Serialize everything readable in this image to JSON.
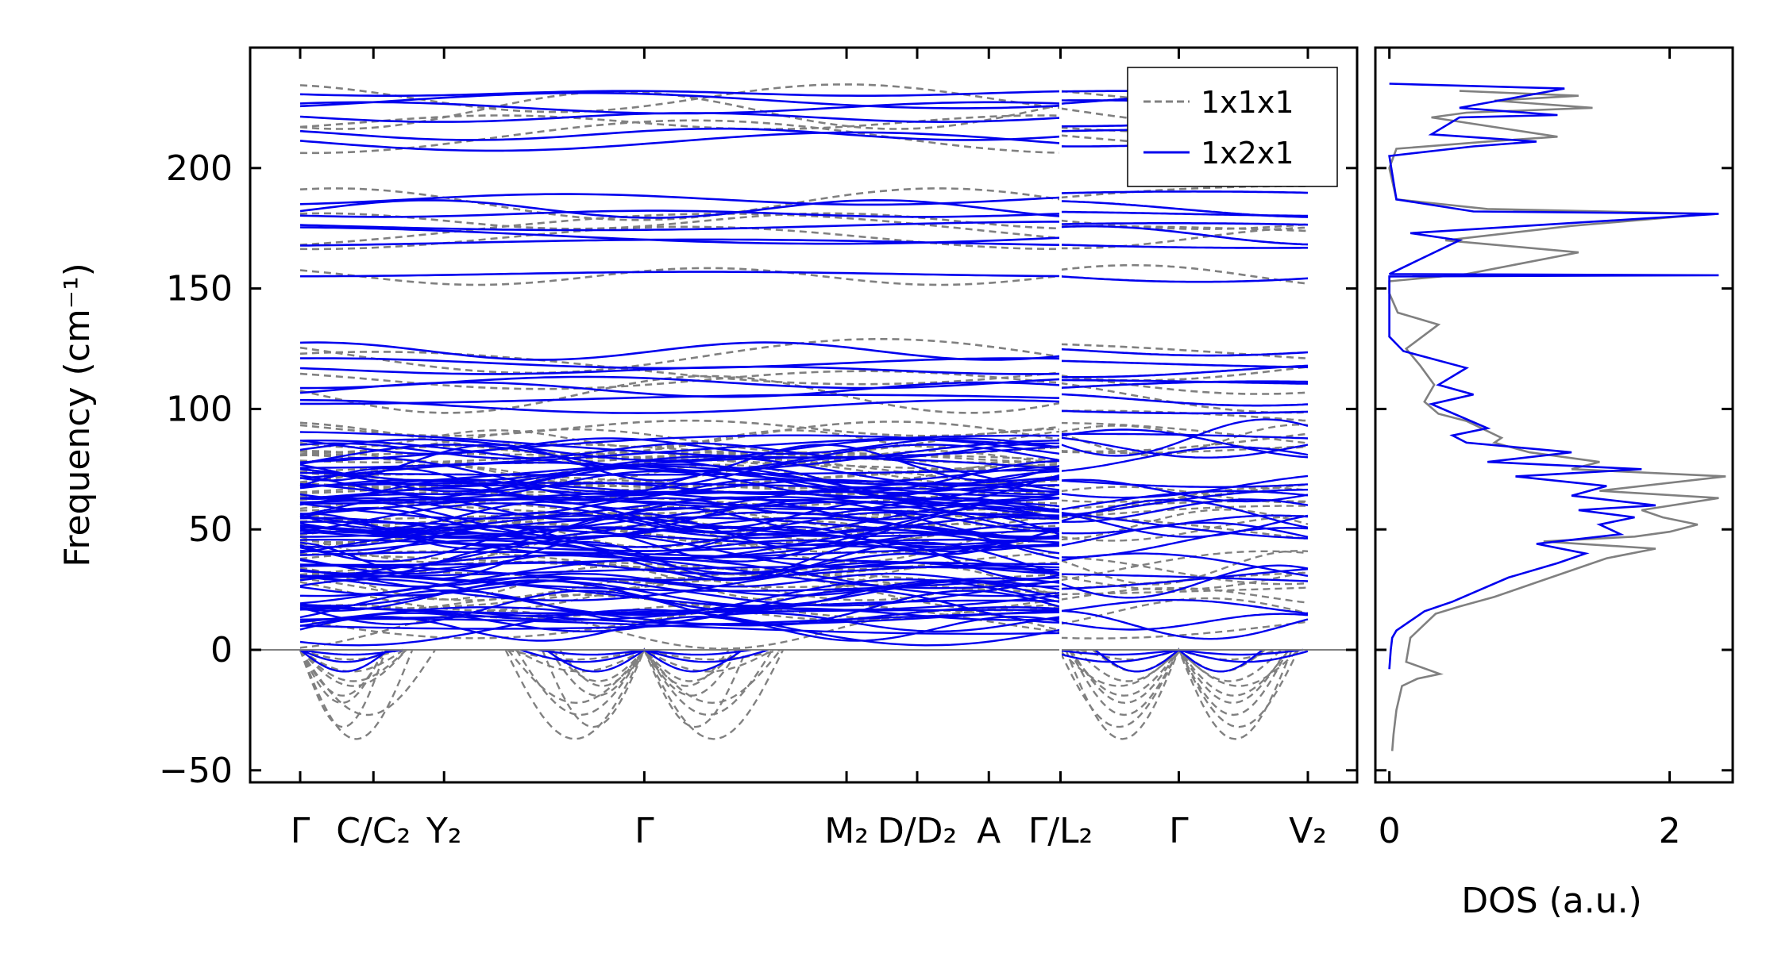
{
  "chart_data": [
    {
      "type": "line",
      "name": "band-structure",
      "ylabel": "Frequency (cm⁻¹)",
      "ylim": [
        -55,
        250
      ],
      "yticks": [
        -50,
        0,
        50,
        100,
        150,
        200
      ],
      "kpath_labels": [
        {
          "label": "Γ",
          "k": 0
        },
        {
          "label": "C/C₂",
          "k": 0.0727
        },
        {
          "label": "Y₂",
          "k": 0.1428
        },
        {
          "label": "Γ",
          "k": 0.3415
        },
        {
          "label": "M₂",
          "k": 0.5422
        },
        {
          "label": "D/D₂",
          "k": 0.6123
        },
        {
          "label": "A",
          "k": 0.6834
        },
        {
          "label": "Γ/L₂",
          "k": 0.7545
        },
        {
          "label": "Γ",
          "k": 0.8719
        },
        {
          "label": "V₂",
          "k": 1.0
        }
      ],
      "path_break_k": 0.7545,
      "zero_line": 0,
      "legend": {
        "position": "top-right",
        "entries": [
          {
            "name": "1x1x1",
            "color": "#808080",
            "style": "dashed"
          },
          {
            "name": "1x2x1",
            "color": "#0000ee",
            "style": "solid"
          }
        ]
      },
      "flat_bands_1x2x1": [
        231,
        228,
        225,
        221,
        214,
        211,
        187,
        183,
        181,
        176,
        172,
        169,
        156,
        124,
        119,
        116,
        111,
        108,
        104,
        101
      ],
      "flat_bands_1x1x1": [
        229,
        224,
        219,
        213,
        185,
        178,
        174,
        171,
        155,
        122,
        117,
        112,
        106,
        92,
        88
      ],
      "acoustic_dips_1x1x1": [
        -4,
        -9,
        -13,
        -15,
        -19,
        -22,
        -27,
        -32,
        -37
      ],
      "acoustic_dips_1x2x1": [
        -2,
        -5,
        -9
      ],
      "dense_region_ylim": [
        8,
        89
      ]
    },
    {
      "type": "line",
      "name": "density-of-states",
      "xlabel": "DOS (a.u.)",
      "xlim": [
        -0.1,
        2.45
      ],
      "xticks": [
        0,
        2
      ],
      "ylim": [
        -55,
        250
      ],
      "series": [
        {
          "name": "1x1x1",
          "color": "#808080",
          "x": [
            0.02,
            0.03,
            0.05,
            0.09,
            0.2,
            0.36,
            0.12,
            0.15,
            0.33,
            0.5,
            0.75,
            0.9,
            1.05,
            1.25,
            1.55,
            1.9,
            1.1,
            1.75,
            2.0,
            2.2,
            1.95,
            1.8,
            2.35,
            1.5,
            2.4,
            1.3,
            1.5,
            1.0,
            0.75,
            0.8,
            0.55,
            0.35,
            0.25,
            0.32,
            0.22,
            0.12,
            0.35,
            0.06,
            0.0,
            0.0,
            0.55,
            1.35,
            0.4,
            1.3,
            2.3,
            0.7,
            0.05,
            0.0,
            0.05,
            0.7,
            1.2,
            0.3,
            0.55,
            1.45,
            0.75,
            1.35,
            0.5
          ],
          "y": [
            -42,
            -35,
            -25,
            -15,
            -12,
            -10,
            -5,
            5,
            15,
            18,
            22,
            25,
            28,
            32,
            38,
            42,
            45,
            47,
            49,
            52,
            55,
            58,
            63,
            66,
            72,
            75,
            78,
            82,
            86,
            88,
            95,
            98,
            103,
            110,
            118,
            125,
            135,
            140,
            148,
            153,
            156,
            165,
            170,
            176,
            181,
            183,
            187,
            200,
            208,
            211,
            213,
            221,
            223,
            225,
            228,
            230,
            232
          ]
        },
        {
          "name": "1x2x1",
          "color": "#0000ee",
          "x": [
            0.0,
            0.01,
            0.02,
            0.05,
            0.15,
            0.25,
            0.45,
            0.65,
            0.85,
            1.2,
            1.4,
            1.05,
            1.65,
            1.5,
            1.75,
            1.35,
            1.9,
            1.3,
            1.55,
            0.9,
            1.8,
            0.7,
            1.3,
            0.55,
            0.45,
            0.7,
            0.5,
            0.3,
            0.6,
            0.35,
            0.55,
            0.1,
            0.0,
            0.0,
            2.35,
            0.0,
            0.5,
            0.15,
            2.35,
            0.6,
            0.05,
            0.0,
            0.6,
            1.05,
            0.3,
            0.5,
            1.2,
            0.5,
            1.25,
            0.0
          ],
          "y": [
            -8,
            0,
            5,
            8,
            12,
            16,
            20,
            25,
            30,
            36,
            40,
            44,
            48,
            52,
            55,
            58,
            60,
            64,
            68,
            72,
            75,
            78,
            82,
            86,
            89,
            92,
            97,
            102,
            106,
            110,
            117,
            124,
            130,
            155,
            155.5,
            156,
            170,
            173,
            181,
            182,
            187,
            205,
            209,
            211,
            214,
            221,
            222,
            225,
            233,
            235
          ]
        }
      ]
    }
  ]
}
